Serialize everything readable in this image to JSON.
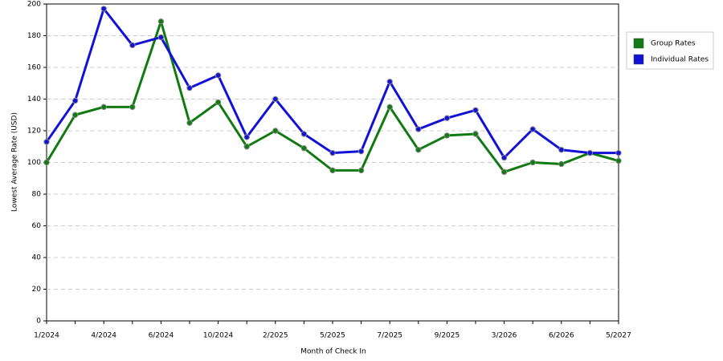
{
  "chart_data": {
    "type": "line",
    "x_label": "Month of Check In",
    "y_label": "Lowest Average Rate (USD)",
    "categories": [
      "1/2024",
      null,
      "4/2024",
      null,
      "6/2024",
      null,
      "10/2024",
      null,
      "2/2025",
      null,
      "5/2025",
      null,
      "7/2025",
      null,
      "9/2025",
      null,
      "3/2026",
      null,
      "6/2026",
      null,
      "5/2027"
    ],
    "series": [
      {
        "name": "Group Rates",
        "color": "#127a12",
        "values": [
          100,
          130,
          135,
          135,
          189,
          125,
          138,
          110,
          120,
          109,
          95,
          95,
          135,
          108,
          117,
          118,
          94,
          100,
          99,
          106,
          101
        ]
      },
      {
        "name": "Individual Rates",
        "color": "#1212d6",
        "values": [
          113,
          139,
          197,
          174,
          179,
          147,
          155,
          116,
          140,
          118,
          106,
          107,
          151,
          121,
          128,
          133,
          103,
          121,
          108,
          106,
          106
        ]
      }
    ],
    "ylim": [
      0,
      200
    ],
    "yticks": [
      0,
      20,
      40,
      60,
      80,
      100,
      120,
      140,
      160,
      180,
      200
    ],
    "grid": true,
    "legend": "right"
  }
}
